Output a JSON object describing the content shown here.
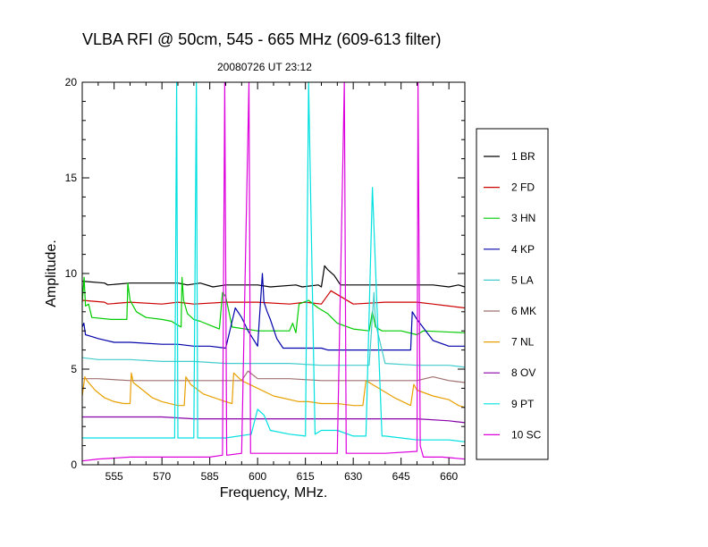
{
  "chart_data": {
    "type": "line",
    "title": "VLBA RFI @ 50cm, 545 - 665 MHz  (609-613 filter)",
    "subtitle": "20080726   UT 23:12",
    "xlabel": "Frequency, MHz.",
    "ylabel": "Amplitude.",
    "xlim": [
      545,
      665
    ],
    "ylim": [
      0,
      20
    ],
    "xticks": [
      555,
      570,
      585,
      600,
      615,
      630,
      645,
      660
    ],
    "yticks": [
      0,
      5,
      10,
      15,
      20
    ],
    "grid": false,
    "legend_position": "right",
    "series": [
      {
        "name": "1 BR",
        "color": "#000000",
        "x": [
          545,
          552,
          553,
          560,
          575,
          578,
          582,
          586,
          590,
          600,
          604,
          612,
          614,
          619,
          620,
          621,
          622,
          624,
          626,
          632,
          640,
          645,
          650,
          655,
          660,
          663,
          665
        ],
        "y": [
          9.6,
          9.5,
          9.4,
          9.5,
          9.5,
          9.4,
          9.5,
          9.3,
          9.4,
          9.4,
          9.3,
          9.4,
          9.3,
          9.4,
          9.3,
          10.4,
          10.2,
          9.9,
          9.4,
          9.4,
          9.4,
          9.4,
          9.4,
          9.4,
          9.3,
          9.4,
          9.3
        ]
      },
      {
        "name": "2 FD",
        "color": "#cc0000",
        "x": [
          545,
          552,
          553,
          560,
          570,
          575,
          580,
          590,
          600,
          610,
          615,
          620,
          623,
          626,
          630,
          640,
          650,
          655,
          660,
          665
        ],
        "y": [
          8.6,
          8.5,
          8.4,
          8.5,
          8.4,
          8.5,
          8.4,
          8.5,
          8.5,
          8.4,
          8.5,
          8.4,
          9.1,
          8.8,
          8.4,
          8.5,
          8.5,
          8.4,
          8.3,
          8.2
        ]
      },
      {
        "name": "3 HN",
        "color": "#00cc00",
        "x": [
          545,
          545.6,
          546,
          547,
          548,
          554,
          559,
          559.3,
          560,
          562,
          565,
          570,
          573,
          575,
          576,
          576.3,
          576.8,
          578,
          580,
          582,
          585,
          588,
          589,
          590,
          592,
          600,
          604,
          610,
          611,
          612,
          613,
          616,
          619,
          622,
          625,
          630,
          635,
          636,
          637,
          639,
          641,
          645,
          650,
          652,
          665
        ],
        "y": [
          8.5,
          9.8,
          8.3,
          8.4,
          7.7,
          7.6,
          7.6,
          9.5,
          8.6,
          8.0,
          7.7,
          7.6,
          7.5,
          7.3,
          7.2,
          9.8,
          8.6,
          7.9,
          7.6,
          7.5,
          7.3,
          7.1,
          9.0,
          8.8,
          7.2,
          7.0,
          7.0,
          7.0,
          7.4,
          6.9,
          8.4,
          8.6,
          8.2,
          7.9,
          7.4,
          7.1,
          7.0,
          8.0,
          7.2,
          7.0,
          7.0,
          7.0,
          6.8,
          7.0,
          6.9
        ]
      },
      {
        "name": "4 KP",
        "color": "#0000aa",
        "x": [
          545,
          545.5,
          546,
          548,
          550,
          555,
          560,
          570,
          575,
          580,
          585,
          590,
          593,
          595,
          597,
          600,
          601.5,
          602,
          603,
          604,
          606,
          608,
          610,
          620,
          622,
          624,
          630,
          638,
          640,
          648,
          648.5,
          650,
          655,
          660,
          665
        ],
        "y": [
          7.2,
          7.4,
          6.8,
          6.7,
          6.6,
          6.4,
          6.4,
          6.3,
          6.3,
          6.2,
          6.2,
          6.1,
          8.2,
          7.7,
          7.0,
          6.2,
          10.0,
          8.5,
          8.0,
          7.6,
          6.6,
          6.1,
          6.1,
          6.1,
          6.0,
          6.0,
          6.0,
          6.0,
          6.0,
          6.0,
          8.0,
          7.6,
          6.5,
          6.2,
          6.2
        ]
      },
      {
        "name": "5 LA",
        "color": "#44cccc",
        "x": [
          545,
          550,
          560,
          570,
          580,
          590,
          600,
          610,
          620,
          630,
          635,
          636.5,
          637,
          640,
          650,
          660,
          665
        ],
        "y": [
          5.6,
          5.5,
          5.5,
          5.4,
          5.4,
          5.3,
          5.3,
          5.3,
          5.2,
          5.2,
          5.2,
          9.0,
          7.4,
          5.3,
          5.2,
          5.2,
          5.1
        ]
      },
      {
        "name": "6 MK",
        "color": "#a07070",
        "x": [
          545,
          550,
          560,
          570,
          580,
          590,
          595,
          597,
          600,
          610,
          620,
          630,
          640,
          650,
          655,
          660,
          665
        ],
        "y": [
          4.5,
          4.5,
          4.4,
          4.4,
          4.4,
          4.4,
          4.4,
          4.9,
          4.5,
          4.5,
          4.4,
          4.4,
          4.4,
          4.4,
          4.6,
          4.4,
          4.3
        ]
      },
      {
        "name": "7 NL",
        "color": "#e8a000",
        "x": [
          545,
          545.8,
          546.5,
          549,
          552,
          555,
          558,
          560,
          560.4,
          561,
          564,
          567,
          570,
          575,
          577,
          577.5,
          579,
          583,
          590,
          592,
          592.5,
          595,
          600,
          605,
          613,
          616,
          620,
          625,
          630,
          633,
          634,
          638,
          643,
          648,
          649,
          650,
          655,
          660,
          663,
          665
        ],
        "y": [
          3.6,
          4.6,
          4.4,
          3.9,
          3.5,
          3.3,
          3.2,
          3.2,
          4.8,
          4.3,
          3.9,
          3.5,
          3.3,
          3.1,
          3.1,
          4.6,
          4.2,
          3.7,
          3.3,
          3.2,
          4.8,
          4.4,
          4.0,
          3.6,
          3.3,
          3.3,
          3.2,
          3.2,
          3.1,
          3.1,
          4.4,
          4.0,
          3.5,
          3.1,
          4.2,
          3.9,
          3.6,
          3.4,
          3.1,
          3.0
        ]
      },
      {
        "name": "8 OV",
        "color": "#8800aa",
        "x": [
          545,
          550,
          560,
          570,
          580,
          584,
          585.5,
          586,
          590,
          600,
          610,
          620,
          630,
          640,
          650,
          660,
          665
        ],
        "y": [
          2.5,
          2.5,
          2.5,
          2.5,
          2.4,
          2.4,
          2.4,
          2.4,
          2.4,
          2.4,
          2.4,
          2.4,
          2.4,
          2.4,
          2.4,
          2.3,
          2.2
        ]
      },
      {
        "name": "9 PT",
        "color": "#00e0e0",
        "x": [
          545,
          550,
          560,
          570,
          574,
          574.6,
          575,
          580,
          580.8,
          581.2,
          585,
          590,
          598,
          600,
          602,
          604,
          610,
          615,
          616,
          618,
          620,
          625,
          630,
          634,
          636,
          639,
          640,
          645,
          650,
          655,
          660,
          665
        ],
        "y": [
          1.4,
          1.4,
          1.4,
          1.4,
          1.4,
          20,
          1.4,
          1.4,
          20,
          1.4,
          1.4,
          1.4,
          1.6,
          2.9,
          2.6,
          1.8,
          1.6,
          1.5,
          20,
          1.6,
          1.8,
          1.8,
          1.5,
          1.5,
          14.5,
          1.5,
          1.5,
          1.4,
          1.3,
          1.3,
          1.3,
          1.2
        ]
      },
      {
        "name": "10 SC",
        "color": "#dd00dd",
        "x": [
          545,
          550,
          560,
          570,
          585,
          589,
          589.7,
          590.3,
          595,
          597.3,
          597.8,
          605,
          620,
          625,
          627.2,
          627.8,
          630,
          640,
          650,
          650.3,
          651,
          652,
          658,
          665
        ],
        "y": [
          0.2,
          0.3,
          0.4,
          0.4,
          0.4,
          0.5,
          20,
          0.5,
          0.6,
          20,
          0.6,
          0.6,
          0.6,
          0.6,
          20,
          0.6,
          0.6,
          0.6,
          0.7,
          20,
          1.0,
          0.4,
          0.4,
          0.3
        ]
      }
    ]
  }
}
